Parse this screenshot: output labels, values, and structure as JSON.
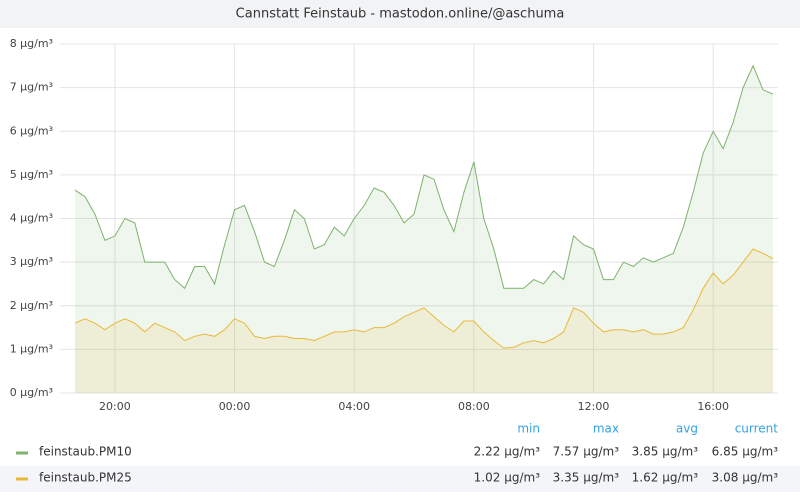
{
  "chart_data": {
    "type": "line",
    "title": "Cannstatt Feinstaub - mastodon.online/@aschuma",
    "x": [
      "18:40",
      "19:00",
      "19:20",
      "19:40",
      "20:00",
      "20:20",
      "20:40",
      "21:00",
      "21:20",
      "21:40",
      "22:00",
      "22:20",
      "22:40",
      "23:00",
      "23:20",
      "23:40",
      "00:00",
      "00:20",
      "00:40",
      "01:00",
      "01:20",
      "01:40",
      "02:00",
      "02:20",
      "02:40",
      "03:00",
      "03:20",
      "03:40",
      "04:00",
      "04:20",
      "04:40",
      "05:00",
      "05:20",
      "05:40",
      "06:00",
      "06:20",
      "06:40",
      "07:00",
      "07:20",
      "07:40",
      "08:00",
      "08:20",
      "08:40",
      "09:00",
      "09:20",
      "09:40",
      "10:00",
      "10:20",
      "10:40",
      "11:00",
      "11:20",
      "11:40",
      "12:00",
      "12:20",
      "12:40",
      "13:00",
      "13:20",
      "13:40",
      "14:00",
      "14:20",
      "14:40",
      "15:00",
      "15:20",
      "15:40",
      "16:00",
      "16:20",
      "16:40",
      "17:00",
      "17:20",
      "17:40",
      "18:00"
    ],
    "xticks": [
      "20:00",
      "00:00",
      "04:00",
      "08:00",
      "12:00",
      "16:00"
    ],
    "ylim": [
      0,
      8
    ],
    "yticks": [
      {
        "value": 0,
        "label": "0 µg/m³"
      },
      {
        "value": 1,
        "label": "1 µg/m³"
      },
      {
        "value": 2,
        "label": "2 µg/m³"
      },
      {
        "value": 3,
        "label": "3 µg/m³"
      },
      {
        "value": 4,
        "label": "4 µg/m³"
      },
      {
        "value": 5,
        "label": "5 µg/m³"
      },
      {
        "value": 6,
        "label": "6 µg/m³"
      },
      {
        "value": 7,
        "label": "7 µg/m³"
      },
      {
        "value": 8,
        "label": "8 µg/m³"
      }
    ],
    "grid": true,
    "fill_area": true,
    "legend_columns": [
      "min",
      "max",
      "avg",
      "current"
    ],
    "series": [
      {
        "name": "feinstaub.PM10",
        "color": "#7eb26d",
        "values": [
          4.65,
          4.5,
          4.1,
          3.5,
          3.6,
          4.0,
          3.9,
          3.0,
          3.0,
          3.0,
          2.6,
          2.4,
          2.9,
          2.9,
          2.5,
          3.4,
          4.2,
          4.3,
          3.7,
          3.0,
          2.9,
          3.5,
          4.2,
          4.0,
          3.3,
          3.4,
          3.8,
          3.6,
          4.0,
          4.3,
          4.7,
          4.6,
          4.3,
          3.9,
          4.1,
          5.0,
          4.9,
          4.2,
          3.7,
          4.6,
          5.3,
          4.0,
          3.3,
          2.4,
          2.4,
          2.4,
          2.6,
          2.5,
          2.8,
          2.6,
          3.6,
          3.4,
          3.3,
          2.6,
          2.6,
          3.0,
          2.9,
          3.1,
          3.0,
          3.1,
          3.2,
          3.8,
          4.6,
          5.5,
          6.0,
          5.6,
          6.2,
          7.0,
          7.5,
          6.95,
          6.85
        ],
        "legend_values": [
          "2.22 µg/m³",
          "7.57 µg/m³",
          "3.85 µg/m³",
          "6.85 µg/m³"
        ]
      },
      {
        "name": "feinstaub.PM25",
        "color": "#eab839",
        "values": [
          1.6,
          1.7,
          1.6,
          1.45,
          1.6,
          1.7,
          1.6,
          1.4,
          1.6,
          1.5,
          1.4,
          1.2,
          1.3,
          1.35,
          1.3,
          1.45,
          1.7,
          1.6,
          1.3,
          1.25,
          1.3,
          1.3,
          1.25,
          1.25,
          1.2,
          1.3,
          1.4,
          1.4,
          1.45,
          1.4,
          1.5,
          1.5,
          1.6,
          1.75,
          1.85,
          1.95,
          1.75,
          1.55,
          1.4,
          1.65,
          1.65,
          1.4,
          1.2,
          1.03,
          1.05,
          1.15,
          1.2,
          1.15,
          1.25,
          1.4,
          1.95,
          1.85,
          1.6,
          1.4,
          1.45,
          1.45,
          1.4,
          1.45,
          1.35,
          1.35,
          1.4,
          1.5,
          1.9,
          2.4,
          2.75,
          2.5,
          2.7,
          3.0,
          3.3,
          3.2,
          3.08
        ],
        "legend_values": [
          "1.02 µg/m³",
          "3.35 µg/m³",
          "1.62 µg/m³",
          "3.08 µg/m³"
        ]
      }
    ]
  }
}
